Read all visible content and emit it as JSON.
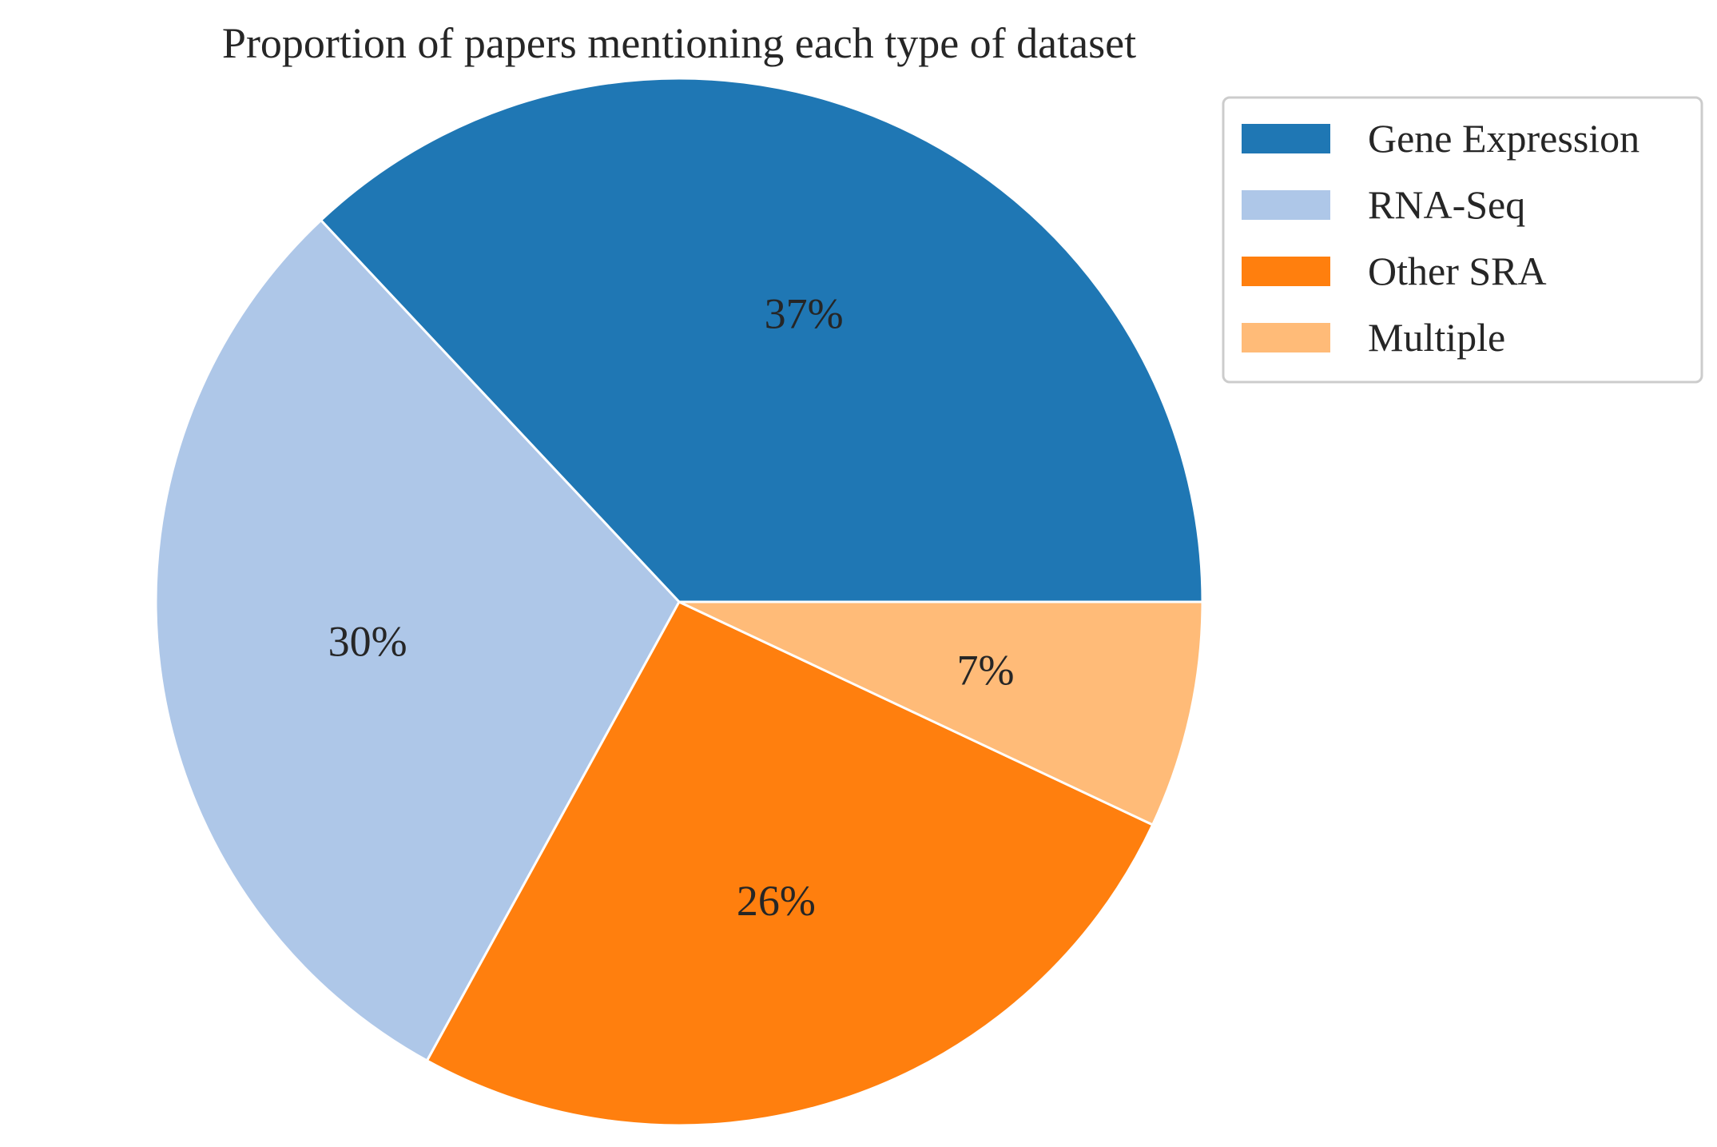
{
  "chart_data": {
    "type": "pie",
    "title": "Proportion of papers mentioning each type of dataset",
    "start_angle_deg": 0,
    "direction": "counterclockwise",
    "slices": [
      {
        "label": "Gene Expression",
        "value": 37,
        "display": "37%",
        "color": "#1f77b4"
      },
      {
        "label": "RNA-Seq",
        "value": 30,
        "display": "30%",
        "color": "#aec7e8"
      },
      {
        "label": "Other SRA",
        "value": 26,
        "display": "26%",
        "color": "#ff7f0e"
      },
      {
        "label": "Multiple",
        "value": 7,
        "display": "7%",
        "color": "#ffbb78"
      }
    ],
    "legend": {
      "position": "upper-right",
      "entries": [
        "Gene Expression",
        "RNA-Seq",
        "Other SRA",
        "Multiple"
      ]
    },
    "edge_color": "#ffffff"
  }
}
